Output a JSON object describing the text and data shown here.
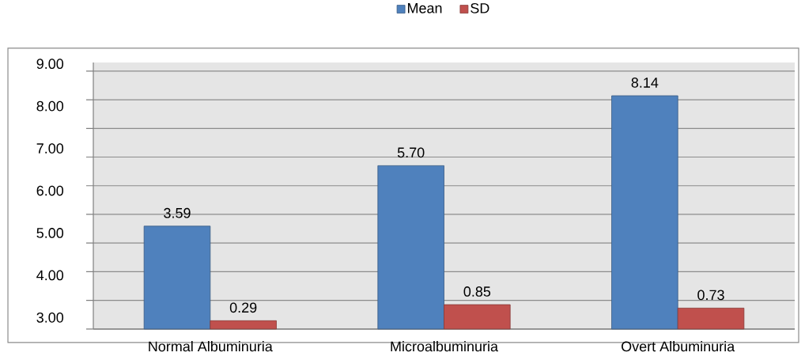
{
  "chart_data": {
    "type": "bar",
    "categories": [
      "Normal Albuminuria",
      "Microalbuminuria",
      "Overt Albuminuria"
    ],
    "series": [
      {
        "name": "Mean",
        "color": "#4f81bd",
        "values": [
          3.59,
          5.7,
          8.14
        ],
        "value_labels": [
          "3.59",
          "5.70",
          "8.14"
        ]
      },
      {
        "name": "SD",
        "color": "#c0504d",
        "values": [
          0.29,
          0.85,
          0.73
        ],
        "value_labels": [
          "0.29",
          "0.85",
          "0.73"
        ]
      }
    ],
    "ylim": [
      0,
      9.3
    ],
    "yticks": [
      {
        "value": 0,
        "label": null
      },
      {
        "value": 1,
        "label": null
      },
      {
        "value": 2,
        "label": null
      },
      {
        "value": 3,
        "label": null
      },
      {
        "value": 4,
        "label": null
      },
      {
        "value": 5,
        "label": null
      },
      {
        "value": 6,
        "label": null
      },
      {
        "value": 7,
        "label": null
      },
      {
        "value": 8,
        "label": null
      },
      {
        "value": 9,
        "label": null
      }
    ],
    "annotations": [
      "9.00",
      "8.00",
      "7.00",
      "6.00",
      "5.00",
      "4.00",
      "3.00"
    ],
    "grid": "y",
    "legend": "top"
  }
}
